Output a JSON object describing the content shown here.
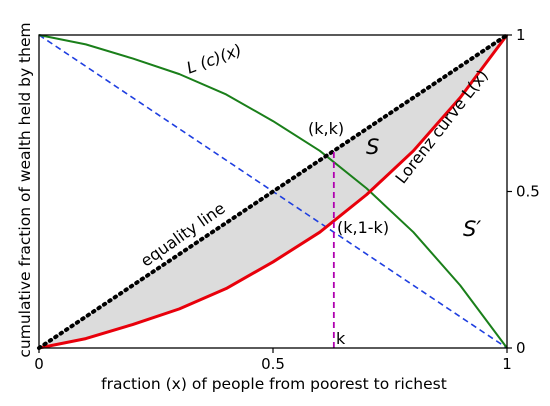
{
  "chart_data": {
    "type": "line",
    "xlabel": "fraction (x) of people from poorest to richest",
    "ylabel": "cumulative fraction of wealth held by them",
    "xlim": [
      0,
      1
    ],
    "ylim": [
      0,
      1
    ],
    "x_ticks": [
      {
        "value": 0,
        "label": "0"
      },
      {
        "value": 0.5,
        "label": "0.5"
      },
      {
        "value": 1,
        "label": "1"
      }
    ],
    "y_ticks_right": [
      {
        "value": 0,
        "label": "0"
      },
      {
        "value": 0.5,
        "label": "0.5"
      },
      {
        "value": 1,
        "label": "1"
      }
    ],
    "grid": false,
    "legend": "none",
    "series": [
      {
        "name": "Lorenz curve L(x)",
        "color": "#e8000b",
        "style": "solid",
        "x": [
          0,
          0.1,
          0.2,
          0.3,
          0.4,
          0.5,
          0.6,
          0.7,
          0.8,
          0.9,
          1.0
        ],
        "y": [
          0,
          0.03,
          0.075,
          0.125,
          0.19,
          0.275,
          0.37,
          0.49,
          0.63,
          0.8,
          1.0
        ]
      },
      {
        "name": "L(c)(x)",
        "color": "#1a7f1a",
        "style": "solid",
        "x": [
          0,
          0.1,
          0.2,
          0.3,
          0.4,
          0.5,
          0.6,
          0.7,
          0.8,
          0.9,
          1.0
        ],
        "y": [
          1.0,
          0.97,
          0.925,
          0.875,
          0.81,
          0.725,
          0.63,
          0.51,
          0.37,
          0.2,
          0
        ]
      },
      {
        "name": "equality line",
        "color": "#000000",
        "style": "dotted",
        "x": [
          0,
          1
        ],
        "y": [
          0,
          1
        ]
      },
      {
        "name": "anti-diagonal",
        "color": "#1f3fe0",
        "style": "dashed",
        "x": [
          0,
          1
        ],
        "y": [
          1,
          0
        ]
      }
    ],
    "marker_line": {
      "x": 0.63,
      "y": [
        0,
        0.63
      ],
      "color": "#b000b0",
      "style": "dashed"
    },
    "shaded_region": {
      "between": [
        "equality line",
        "Lorenz curve L(x)"
      ],
      "color": "#dcdcdc"
    },
    "annotations": {
      "curve_label": "Lorenz curve L(x)",
      "lc_label": "L (c)(x)",
      "equality_label": "equality line",
      "kk_label": "(k,k)",
      "k1k_label": "(k,1-k)",
      "k_label": "k",
      "S_label": "S",
      "Sprime_label": "S′"
    }
  }
}
